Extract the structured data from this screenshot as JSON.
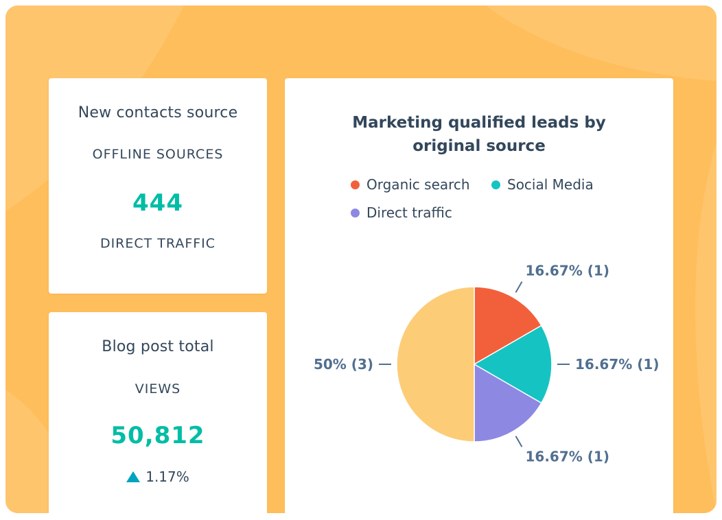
{
  "contacts_card": {
    "title": "New contacts source",
    "label_top": "OFFLINE SOURCES",
    "value": "444",
    "label_bottom": "DIRECT TRAFFIC"
  },
  "blog_card": {
    "title": "Blog post total",
    "label": "VIEWS",
    "value": "50,812",
    "change": "1.17%",
    "change_icon": "triangle-up-icon"
  },
  "colors": {
    "background": "#ffbe5c",
    "accent_teal": "#00bda5",
    "text": "#33475b"
  },
  "chart_data": {
    "type": "pie",
    "title": "Marketing qualified leads by original source",
    "title_lines": [
      "Marketing qualified leads by",
      "original source"
    ],
    "legend_placement": "top",
    "legend": [
      {
        "name": "Organic search",
        "color": "#f2603b"
      },
      {
        "name": "Social Media",
        "color": "#16c3c3"
      },
      {
        "name": "Direct traffic",
        "color": "#8d89e2"
      }
    ],
    "slices": [
      {
        "name": "Organic search",
        "value": 1,
        "label": "16.67% (1)",
        "color": "#f2603b"
      },
      {
        "name": "Social Media",
        "value": 1,
        "label": "16.67% (1)",
        "color": "#16c3c3"
      },
      {
        "name": "Direct traffic",
        "value": 1,
        "label": "16.67% (1)",
        "color": "#8d89e2"
      },
      {
        "name": "",
        "value": 3,
        "label": "50% (3)",
        "color": "#fdcc77"
      }
    ]
  }
}
